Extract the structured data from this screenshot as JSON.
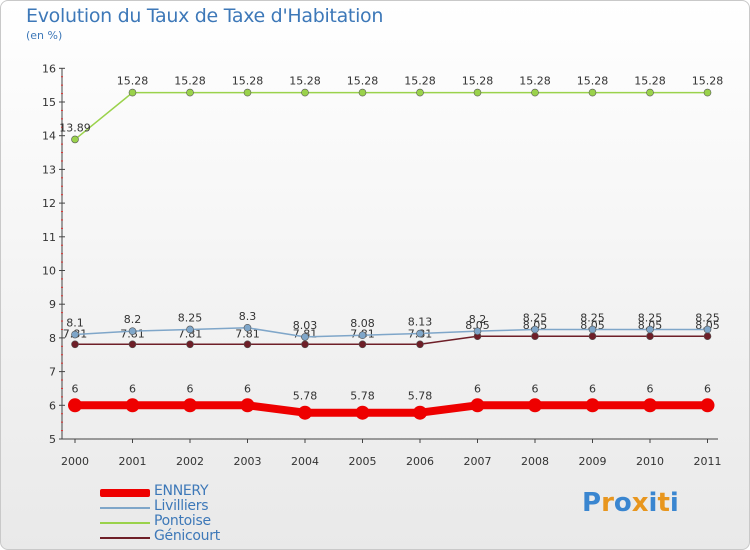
{
  "header": {
    "title": "Evolution du Taux de Taxe d'Habitation",
    "subtitle": "(en %)"
  },
  "brand": {
    "logo_text": "Proxiti",
    "letter_colors": [
      "#3a86d0",
      "#e8961e",
      "#3a86d0",
      "#e8961e",
      "#3a86d0",
      "#e8961e",
      "#3a86d0"
    ]
  },
  "chart_data": {
    "type": "line",
    "title": "Evolution du Taux de Taxe d'Habitation",
    "ylabel": "(en %)",
    "xlabel": "",
    "categories": [
      "2000",
      "2001",
      "2002",
      "2003",
      "2004",
      "2005",
      "2006",
      "2007",
      "2008",
      "2009",
      "2010",
      "2011"
    ],
    "yticks": [
      "5",
      "6",
      "7",
      "8",
      "9",
      "10",
      "11",
      "12",
      "13",
      "14",
      "15",
      "16"
    ],
    "ylim": [
      5,
      16
    ],
    "grid": false,
    "legend_position": "bottom-left",
    "series": [
      {
        "name": "Génicourt",
        "color": "#6e1f28",
        "weight": "thin",
        "values": [
          7.81,
          7.81,
          7.81,
          7.81,
          7.81,
          7.81,
          7.81,
          8.05,
          8.05,
          8.05,
          8.05,
          8.05
        ],
        "labels": [
          "7.81",
          "7.81",
          "7.81",
          "7.81",
          "7.81",
          "7.81",
          "7.81",
          "8.05",
          "8.05",
          "8.05",
          "8.05",
          "8.05"
        ]
      },
      {
        "name": "Pontoise",
        "color": "#9ad24b",
        "weight": "thin",
        "values": [
          13.89,
          15.28,
          15.28,
          15.28,
          15.28,
          15.28,
          15.28,
          15.28,
          15.28,
          15.28,
          15.28,
          15.28
        ],
        "labels": [
          "13.89",
          "15.28",
          "15.28",
          "15.28",
          "15.28",
          "15.28",
          "15.28",
          "15.28",
          "15.28",
          "15.28",
          "15.28",
          "15.28"
        ]
      },
      {
        "name": "Livilliers",
        "color": "#7fa6c9",
        "weight": "thin",
        "values": [
          8.1,
          8.2,
          8.25,
          8.3,
          8.03,
          8.08,
          8.13,
          8.2,
          8.25,
          8.25,
          8.25,
          8.25
        ],
        "labels": [
          "8.1",
          "8.2",
          "8.25",
          "8.3",
          "8.03",
          "8.08",
          "8.13",
          "8.2",
          "8.25",
          "8.25",
          "8.25",
          "8.25"
        ]
      },
      {
        "name": "ENNERY",
        "color": "#ee0000",
        "weight": "thick",
        "values": [
          6,
          6,
          6,
          6,
          5.78,
          5.78,
          5.78,
          6,
          6,
          6,
          6,
          6
        ],
        "labels": [
          "6",
          "6",
          "6",
          "6",
          "5.78",
          "5.78",
          "5.78",
          "6",
          "6",
          "6",
          "6",
          "6"
        ]
      }
    ],
    "legend_order": [
      "ENNERY",
      "Livilliers",
      "Pontoise",
      "Génicourt"
    ]
  }
}
